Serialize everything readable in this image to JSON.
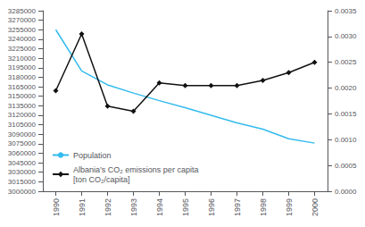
{
  "chart_data": {
    "type": "line",
    "x": [
      1990,
      1991,
      1992,
      1993,
      1994,
      1995,
      1996,
      1997,
      1998,
      1999,
      2000
    ],
    "xlim": [
      1989.5,
      2000.5
    ],
    "xticks": [
      1990,
      1991,
      1992,
      1993,
      1994,
      1995,
      1996,
      1997,
      1998,
      1999,
      2000
    ],
    "ylim": [
      3000000,
      3285000
    ],
    "yticks": [
      3000000,
      3015000,
      3030000,
      3045000,
      3060000,
      3075000,
      3090000,
      3105000,
      3120000,
      3135000,
      3150000,
      3165000,
      3180000,
      3195000,
      3210000,
      3225000,
      3240000,
      3255000,
      3270000,
      3285000
    ],
    "y2lim": [
      0,
      0.0035
    ],
    "y2ticks": [
      {
        "value": 0,
        "label": "0.0000"
      },
      0.0005,
      {
        "value": 0.001,
        "label": "0.0010"
      },
      0.0015,
      {
        "value": 0.002,
        "label": "0.0020"
      },
      0.0025,
      {
        "value": 0.003,
        "label": "0.0030"
      },
      0.0035
    ],
    "grid": false,
    "legend": "lower left",
    "series": [
      {
        "name": "Population",
        "color": "#33bbee",
        "values": [
          3255000,
          3190000,
          3168000,
          3155000,
          3143000,
          3132000,
          3120000,
          3108000,
          3098000,
          3083000,
          3076000
        ]
      },
      {
        "name": "Albania’s CO₂ emissions per capita\n[ton CO₂/capita]",
        "color": "#111111",
        "axis": "y2",
        "marker": "diamond",
        "values": [
          0.00195,
          0.00305,
          0.00165,
          0.00155,
          0.0021,
          0.00205,
          0.00205,
          0.00205,
          0.00215,
          0.0023,
          0.0025
        ]
      }
    ]
  }
}
